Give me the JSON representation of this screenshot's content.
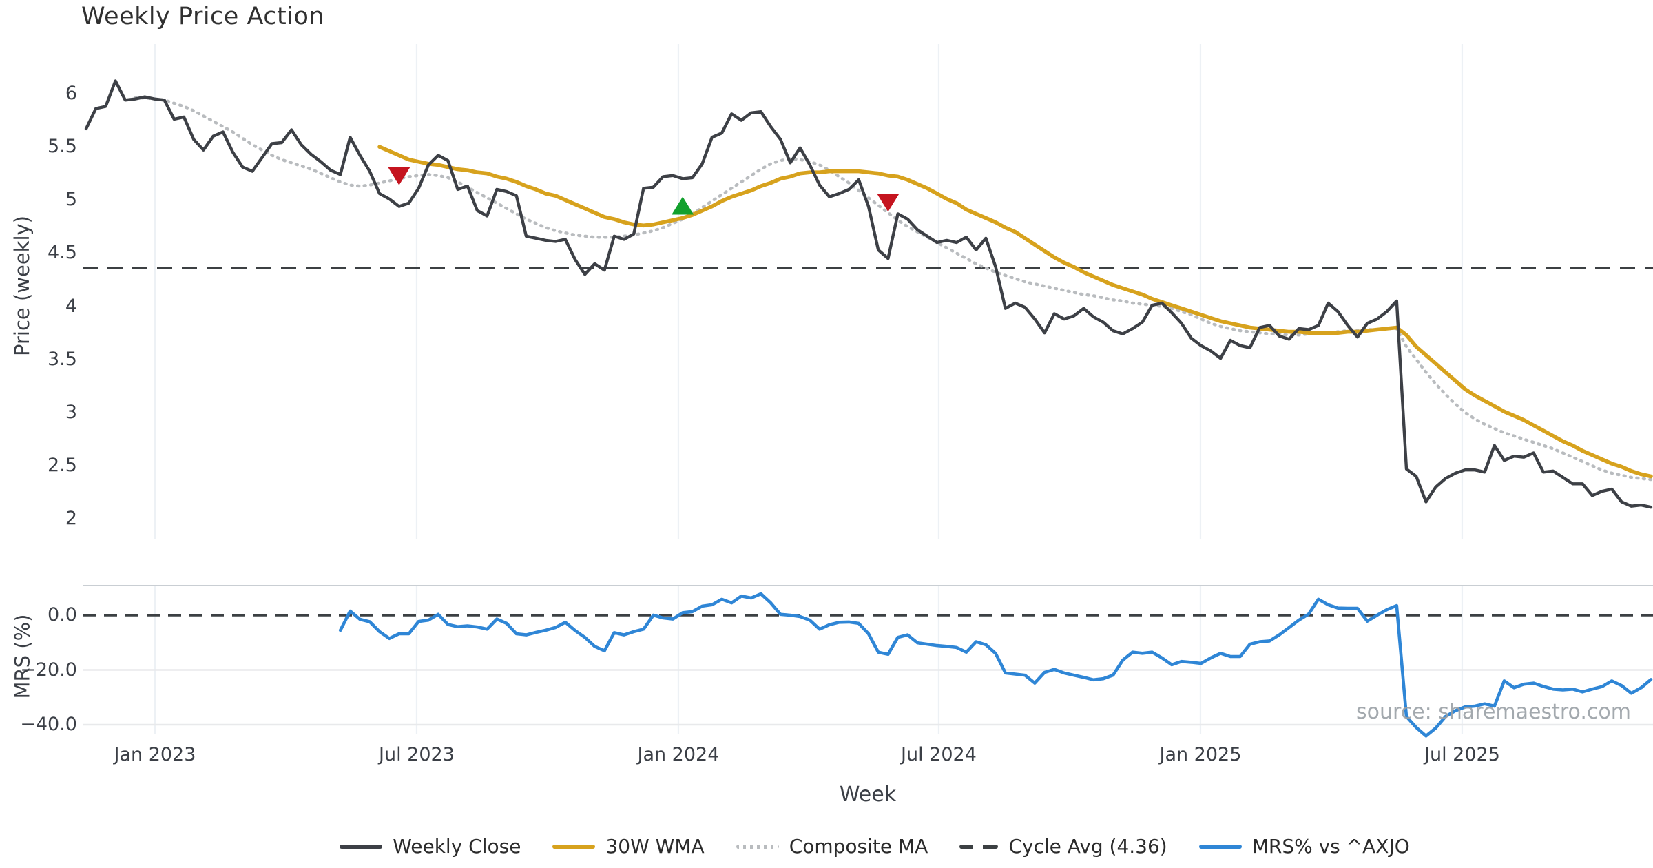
{
  "title": "Weekly Price Action",
  "source_note": "source: sharemaestro.com",
  "colors": {
    "price_line": "#3d4046",
    "wma_line": "#d7a21d",
    "composite_line": "#b9bcbf",
    "cycle_line": "#3c4043",
    "mrs_line": "#2f86d6",
    "sell_marker": "#c5141f",
    "buy_marker": "#12a02d",
    "grid_vertical": "#edf1f5",
    "grid_horizontal": "#e8e9eb",
    "panel_border": "#c9ced3",
    "tick_text": "#3b3f46"
  },
  "chart_data": {
    "type": "line",
    "title": "Weekly Price Action",
    "x_axis": {
      "label": "Week",
      "ticks": [
        {
          "label": "Jan 2023",
          "week": 7.04
        },
        {
          "label": "Jul 2023",
          "week": 33.8
        },
        {
          "label": "Jan 2024",
          "week": 60.56
        },
        {
          "label": "Jul 2024",
          "week": 87.18
        },
        {
          "label": "Jan 2025",
          "week": 113.94
        },
        {
          "label": "Jul 2025",
          "week": 140.7
        }
      ]
    },
    "panels": [
      {
        "id": "price",
        "ylabel": "Price (weekly)",
        "ylim": [
          1.8,
          6.35
        ],
        "yticks": [
          {
            "label": "6",
            "value": 6
          },
          {
            "label": "5.5",
            "value": 5.5
          },
          {
            "label": "5",
            "value": 5
          },
          {
            "label": "4.5",
            "value": 4.5
          },
          {
            "label": "4",
            "value": 4
          },
          {
            "label": "3.5",
            "value": 3.5
          },
          {
            "label": "3",
            "value": 3
          },
          {
            "label": "2.5",
            "value": 2.5
          },
          {
            "label": "2",
            "value": 2
          }
        ],
        "grid": "vertical-only"
      },
      {
        "id": "mrs",
        "ylabel": "MRS (%)",
        "ylim": [
          -48,
          12
        ],
        "yticks": [
          {
            "label": "0.0",
            "value": 0
          },
          {
            "label": "−20.0",
            "value": -20
          },
          {
            "label": "−40.0",
            "value": -40
          }
        ],
        "grid": "horizontal+vertical"
      }
    ],
    "series": [
      {
        "name": "Weekly Close",
        "panel": "price",
        "style": "solid",
        "start_week": 0,
        "values": [
          5.67,
          5.86,
          5.88,
          6.12,
          5.94,
          5.95,
          5.97,
          5.95,
          5.94,
          5.76,
          5.78,
          5.57,
          5.47,
          5.6,
          5.64,
          5.45,
          5.31,
          5.27,
          5.4,
          5.53,
          5.54,
          5.66,
          5.52,
          5.43,
          5.36,
          5.28,
          5.24,
          5.59,
          5.42,
          5.27,
          5.06,
          5.01,
          4.94,
          4.97,
          5.11,
          5.33,
          5.42,
          5.37,
          5.1,
          5.13,
          4.9,
          4.85,
          5.1,
          5.08,
          5.04,
          4.66,
          4.64,
          4.62,
          4.61,
          4.63,
          4.44,
          4.3,
          4.4,
          4.34,
          4.66,
          4.63,
          4.68,
          5.11,
          5.12,
          5.22,
          5.23,
          5.2,
          5.21,
          5.34,
          5.59,
          5.63,
          5.81,
          5.75,
          5.82,
          5.83,
          5.69,
          5.57,
          5.35,
          5.49,
          5.33,
          5.14,
          5.03,
          5.06,
          5.1,
          5.19,
          4.94,
          4.53,
          4.45,
          4.87,
          4.82,
          4.72,
          4.66,
          4.6,
          4.62,
          4.6,
          4.65,
          4.53,
          4.64,
          4.37,
          3.98,
          4.03,
          3.99,
          3.88,
          3.75,
          3.93,
          3.88,
          3.91,
          3.98,
          3.9,
          3.85,
          3.77,
          3.74,
          3.79,
          3.85,
          4.01,
          4.03,
          3.94,
          3.84,
          3.7,
          3.63,
          3.58,
          3.51,
          3.68,
          3.63,
          3.61,
          3.8,
          3.82,
          3.72,
          3.69,
          3.79,
          3.78,
          3.82,
          4.03,
          3.95,
          3.82,
          3.71,
          3.84,
          3.88,
          3.95,
          4.05,
          2.47,
          2.4,
          2.16,
          2.3,
          2.38,
          2.43,
          2.46,
          2.46,
          2.44,
          2.69,
          2.55,
          2.59,
          2.58,
          2.62,
          2.44,
          2.45,
          2.39,
          2.33,
          2.33,
          2.22,
          2.26,
          2.28,
          2.16,
          2.12,
          2.13,
          2.11
        ]
      },
      {
        "name": "30W WMA",
        "panel": "price",
        "style": "solid",
        "start_week": 30,
        "values": [
          5.5,
          5.46,
          5.42,
          5.38,
          5.36,
          5.34,
          5.33,
          5.31,
          5.29,
          5.28,
          5.26,
          5.25,
          5.22,
          5.2,
          5.17,
          5.13,
          5.1,
          5.06,
          5.04,
          5.0,
          4.96,
          4.92,
          4.88,
          4.84,
          4.82,
          4.79,
          4.77,
          4.76,
          4.77,
          4.79,
          4.81,
          4.83,
          4.86,
          4.9,
          4.94,
          4.99,
          5.03,
          5.06,
          5.09,
          5.13,
          5.16,
          5.2,
          5.22,
          5.25,
          5.26,
          5.26,
          5.27,
          5.27,
          5.27,
          5.27,
          5.26,
          5.25,
          5.23,
          5.22,
          5.19,
          5.15,
          5.11,
          5.06,
          5.01,
          4.97,
          4.91,
          4.87,
          4.83,
          4.79,
          4.74,
          4.7,
          4.64,
          4.58,
          4.52,
          4.46,
          4.41,
          4.37,
          4.32,
          4.28,
          4.24,
          4.2,
          4.17,
          4.14,
          4.11,
          4.07,
          4.04,
          4.01,
          3.98,
          3.95,
          3.92,
          3.89,
          3.86,
          3.84,
          3.82,
          3.8,
          3.79,
          3.78,
          3.77,
          3.76,
          3.76,
          3.75,
          3.75,
          3.75,
          3.75,
          3.76,
          3.76,
          3.77,
          3.78,
          3.79,
          3.8,
          3.73,
          3.62,
          3.54,
          3.46,
          3.38,
          3.3,
          3.22,
          3.16,
          3.11,
          3.06,
          3.01,
          2.97,
          2.93,
          2.88,
          2.83,
          2.78,
          2.73,
          2.69,
          2.64,
          2.6,
          2.56,
          2.52,
          2.49,
          2.45,
          2.42,
          2.4
        ]
      },
      {
        "name": "Composite MA",
        "panel": "price",
        "style": "dotted",
        "start_week": 5,
        "values": [
          5.96,
          5.96,
          5.95,
          5.94,
          5.91,
          5.88,
          5.84,
          5.79,
          5.74,
          5.69,
          5.64,
          5.58,
          5.52,
          5.47,
          5.42,
          5.38,
          5.35,
          5.32,
          5.29,
          5.25,
          5.21,
          5.17,
          5.14,
          5.13,
          5.14,
          5.16,
          5.18,
          5.2,
          5.22,
          5.23,
          5.24,
          5.23,
          5.21,
          5.17,
          5.12,
          5.07,
          5.02,
          4.97,
          4.92,
          4.87,
          4.82,
          4.78,
          4.74,
          4.71,
          4.69,
          4.67,
          4.66,
          4.65,
          4.65,
          4.65,
          4.66,
          4.67,
          4.69,
          4.71,
          4.74,
          4.78,
          4.82,
          4.87,
          4.93,
          4.99,
          5.05,
          5.11,
          5.17,
          5.23,
          5.29,
          5.34,
          5.37,
          5.39,
          5.38,
          5.36,
          5.33,
          5.28,
          5.22,
          5.16,
          5.09,
          5.02,
          4.95,
          4.88,
          4.81,
          4.75,
          4.7,
          4.65,
          4.6,
          4.55,
          4.5,
          4.45,
          4.4,
          4.36,
          4.32,
          4.29,
          4.26,
          4.23,
          4.21,
          4.19,
          4.17,
          4.15,
          4.13,
          4.11,
          4.1,
          4.08,
          4.06,
          4.05,
          4.03,
          4.02,
          4.01,
          4.0,
          3.98,
          3.95,
          3.92,
          3.88,
          3.84,
          3.81,
          3.79,
          3.77,
          3.76,
          3.75,
          3.74,
          3.74,
          3.73,
          3.73,
          3.74,
          3.74,
          3.75,
          3.76,
          3.77,
          3.77,
          3.78,
          3.78,
          3.79,
          3.79,
          3.62,
          3.5,
          3.38,
          3.27,
          3.17,
          3.08,
          3.0,
          2.94,
          2.89,
          2.85,
          2.81,
          2.78,
          2.75,
          2.72,
          2.69,
          2.66,
          2.62,
          2.58,
          2.54,
          2.5,
          2.46,
          2.43,
          2.41,
          2.39,
          2.38,
          2.37
        ]
      },
      {
        "name": "Cycle Avg (4.36)",
        "panel": "price",
        "style": "dashed-hline",
        "value": 4.36
      },
      {
        "name": "MRS% vs ^AXJO",
        "panel": "mrs",
        "style": "solid",
        "start_week": 26,
        "values": [
          -5.5,
          1.5,
          -1.5,
          -2.4,
          -6.0,
          -8.5,
          -6.8,
          -6.8,
          -2.3,
          -1.8,
          0.3,
          -3.4,
          -4.2,
          -3.9,
          -4.3,
          -5.1,
          -1.4,
          -3.0,
          -6.8,
          -7.2,
          -6.3,
          -5.5,
          -4.5,
          -2.6,
          -5.6,
          -8.1,
          -11.4,
          -13.0,
          -6.4,
          -7.2,
          -6.0,
          -5.1,
          0.0,
          -1.0,
          -1.4,
          0.9,
          1.3,
          3.3,
          3.8,
          5.8,
          4.5,
          7.0,
          6.3,
          7.8,
          4.5,
          0.3,
          0.0,
          -0.5,
          -1.8,
          -5.1,
          -3.5,
          -2.6,
          -2.5,
          -3.0,
          -6.8,
          -13.5,
          -14.3,
          -8.1,
          -7.2,
          -10.1,
          -10.6,
          -11.1,
          -11.4,
          -11.8,
          -13.5,
          -9.7,
          -10.8,
          -14.0,
          -21.1,
          -21.5,
          -21.9,
          -24.8,
          -20.9,
          -19.8,
          -21.1,
          -21.9,
          -22.7,
          -23.6,
          -23.2,
          -21.9,
          -16.4,
          -13.5,
          -13.9,
          -13.5,
          -15.6,
          -18.1,
          -16.9,
          -17.2,
          -17.6,
          -15.6,
          -13.9,
          -15.1,
          -15.1,
          -10.6,
          -9.7,
          -9.4,
          -7.2,
          -4.5,
          -1.8,
          0.4,
          5.8,
          3.8,
          2.6,
          2.5,
          2.5,
          -2.2,
          0.0,
          2.0,
          3.5,
          -37.0,
          -41.0,
          -44.1,
          -41.2,
          -37.0,
          -34.9,
          -33.5,
          -33.2,
          -32.4,
          -33.2,
          -24.0,
          -26.5,
          -25.2,
          -24.8,
          -26.0,
          -27.0,
          -27.3,
          -27.0,
          -28.0,
          -27.0,
          -26.1,
          -24.0,
          -25.7,
          -28.5,
          -26.5,
          -23.5
        ]
      }
    ],
    "markers": [
      {
        "type": "sell",
        "shape": "triangle-down",
        "week": 32,
        "price": 5.23
      },
      {
        "type": "buy",
        "shape": "triangle-up",
        "week": 61,
        "price": 4.94
      },
      {
        "type": "sell",
        "shape": "triangle-down",
        "week": 82,
        "price": 4.98
      }
    ],
    "legend_position": "bottom-center",
    "grid_on": true
  }
}
